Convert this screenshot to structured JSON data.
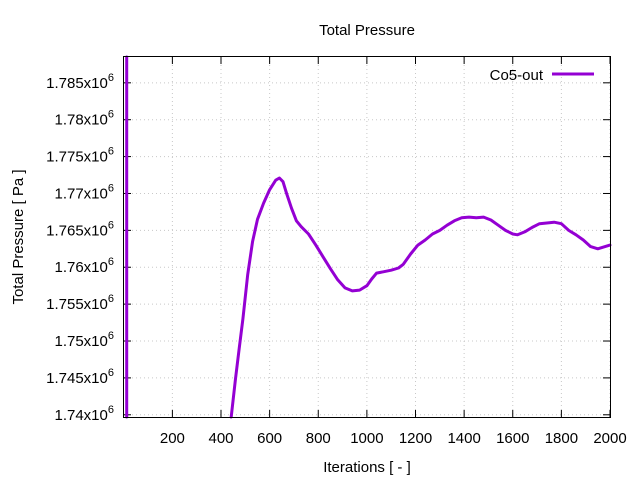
{
  "chart_data": {
    "type": "line",
    "title": "Total Pressure",
    "xlabel": "Iterations [ - ]",
    "ylabel": "Total Pressure [ Pa ]",
    "xlim": [
      1,
      2000
    ],
    "ylim": [
      1739700,
      1788500
    ],
    "grid": true,
    "legend_position": "top-right",
    "x_ticks": [
      200,
      400,
      600,
      800,
      1000,
      1200,
      1400,
      1600,
      1800,
      2000
    ],
    "x_tick_labels": [
      "200",
      "400",
      "600",
      "800",
      "1000",
      "1200",
      "1400",
      "1600",
      "1800",
      "2000"
    ],
    "y_ticks": [
      1740000,
      1745000,
      1750000,
      1755000,
      1760000,
      1765000,
      1770000,
      1775000,
      1780000,
      1785000
    ],
    "y_tick_labels": [
      {
        "mantissa": "1.74x10",
        "exp": "6"
      },
      {
        "mantissa": "1.745x10",
        "exp": "6"
      },
      {
        "mantissa": "1.75x10",
        "exp": "6"
      },
      {
        "mantissa": "1.755x10",
        "exp": "6"
      },
      {
        "mantissa": "1.76x10",
        "exp": "6"
      },
      {
        "mantissa": "1.765x10",
        "exp": "6"
      },
      {
        "mantissa": "1.77x10",
        "exp": "6"
      },
      {
        "mantissa": "1.775x10",
        "exp": "6"
      },
      {
        "mantissa": "1.78x10",
        "exp": "6"
      },
      {
        "mantissa": "1.785x10",
        "exp": "6"
      }
    ],
    "series": [
      {
        "name": "Co5-out",
        "color": "#9400d3",
        "segments": [
          [
            [
              12,
              1788500
            ],
            [
              12,
              1739700
            ]
          ],
          [
            [
              442,
              1739700
            ],
            [
              460,
              1745000
            ],
            [
              475,
              1749000
            ],
            [
              490,
              1753000
            ],
            [
              510,
              1759000
            ],
            [
              530,
              1763500
            ],
            [
              550,
              1766500
            ],
            [
              575,
              1768700
            ],
            [
              600,
              1770500
            ],
            [
              625,
              1771800
            ],
            [
              640,
              1772100
            ],
            [
              655,
              1771600
            ],
            [
              670,
              1770000
            ],
            [
              690,
              1768000
            ],
            [
              710,
              1766300
            ],
            [
              730,
              1765500
            ],
            [
              760,
              1764500
            ],
            [
              790,
              1763000
            ],
            [
              820,
              1761400
            ],
            [
              850,
              1759800
            ],
            [
              880,
              1758300
            ],
            [
              910,
              1757200
            ],
            [
              940,
              1756800
            ],
            [
              970,
              1756900
            ],
            [
              1000,
              1757500
            ],
            [
              1020,
              1758400
            ],
            [
              1040,
              1759200
            ],
            [
              1070,
              1759400
            ],
            [
              1100,
              1759600
            ],
            [
              1130,
              1759900
            ],
            [
              1150,
              1760400
            ],
            [
              1180,
              1761800
            ],
            [
              1210,
              1763000
            ],
            [
              1240,
              1763700
            ],
            [
              1270,
              1764500
            ],
            [
              1300,
              1765000
            ],
            [
              1330,
              1765700
            ],
            [
              1360,
              1766300
            ],
            [
              1390,
              1766700
            ],
            [
              1420,
              1766800
            ],
            [
              1450,
              1766700
            ],
            [
              1480,
              1766800
            ],
            [
              1510,
              1766400
            ],
            [
              1540,
              1765700
            ],
            [
              1570,
              1765000
            ],
            [
              1600,
              1764500
            ],
            [
              1620,
              1764400
            ],
            [
              1650,
              1764800
            ],
            [
              1680,
              1765400
            ],
            [
              1710,
              1765900
            ],
            [
              1740,
              1766000
            ],
            [
              1770,
              1766100
            ],
            [
              1800,
              1765900
            ],
            [
              1830,
              1765000
            ],
            [
              1860,
              1764400
            ],
            [
              1890,
              1763700
            ],
            [
              1920,
              1762800
            ],
            [
              1950,
              1762500
            ],
            [
              1980,
              1762800
            ],
            [
              2000,
              1763000
            ]
          ]
        ]
      }
    ]
  }
}
